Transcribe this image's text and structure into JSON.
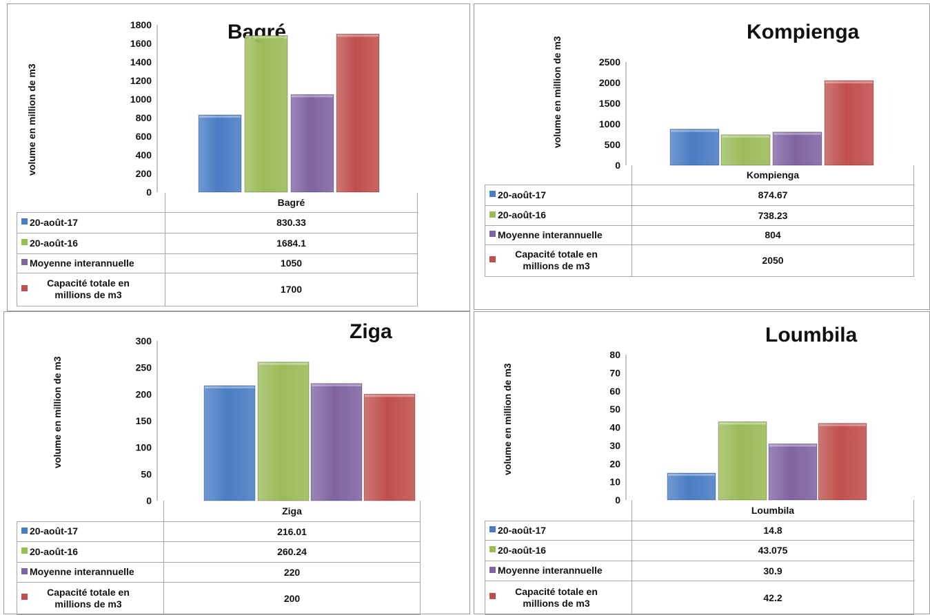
{
  "colors": {
    "s0": "#4a7dc4",
    "s1": "#9bbb59",
    "s2": "#8064a2",
    "s3": "#c0504d"
  },
  "chart_data": [
    {
      "type": "bar",
      "title": "Bagré",
      "ylabel": "volume en million de m3",
      "categories": [
        "Bagré"
      ],
      "ylim": [
        0,
        1800
      ],
      "yticks": [
        0,
        200,
        400,
        600,
        800,
        1000,
        1200,
        1400,
        1600,
        1800
      ],
      "series": [
        {
          "name": "20-août-17",
          "values": [
            830.33
          ],
          "value_label": "830.33"
        },
        {
          "name": "20-août-16",
          "values": [
            1684.1
          ],
          "value_label": "1684.1"
        },
        {
          "name": "Moyenne interannuelle",
          "values": [
            1050
          ],
          "value_label": "1050"
        },
        {
          "name": "Capacité totale en millions de m3",
          "values": [
            1700
          ],
          "value_label": "1700"
        }
      ]
    },
    {
      "type": "bar",
      "title": "Kompienga",
      "ylabel": "volume en million de m3",
      "categories": [
        "Kompienga"
      ],
      "ylim": [
        0,
        2500
      ],
      "yticks": [
        0,
        500,
        1000,
        1500,
        2000,
        2500
      ],
      "series": [
        {
          "name": "20-août-17",
          "values": [
            874.67
          ],
          "value_label": "874.67"
        },
        {
          "name": "20-août-16",
          "values": [
            738.23
          ],
          "value_label": "738.23"
        },
        {
          "name": "Moyenne interannuelle",
          "values": [
            804
          ],
          "value_label": "804"
        },
        {
          "name": "Capacité totale en millions de m3",
          "values": [
            2050
          ],
          "value_label": "2050"
        }
      ]
    },
    {
      "type": "bar",
      "title": "Ziga",
      "ylabel": "volume en million de m3",
      "categories": [
        "Ziga"
      ],
      "ylim": [
        0,
        300
      ],
      "yticks": [
        0,
        50,
        100,
        150,
        200,
        250,
        300
      ],
      "series": [
        {
          "name": "20-août-17",
          "values": [
            216.01
          ],
          "value_label": "216.01"
        },
        {
          "name": "20-août-16",
          "values": [
            260.24
          ],
          "value_label": "260.24"
        },
        {
          "name": "Moyenne interannuelle",
          "values": [
            220
          ],
          "value_label": "220"
        },
        {
          "name": "Capacité totale en millions de m3",
          "values": [
            200
          ],
          "value_label": "200"
        }
      ]
    },
    {
      "type": "bar",
      "title": "Loumbila",
      "ylabel": "volume en million de m3",
      "categories": [
        "Loumbila"
      ],
      "ylim": [
        0,
        80
      ],
      "yticks": [
        0,
        10,
        20,
        30,
        40,
        50,
        60,
        70,
        80
      ],
      "series": [
        {
          "name": "20-août-17",
          "values": [
            14.8
          ],
          "value_label": "14.8"
        },
        {
          "name": "20-août-16",
          "values": [
            43.075
          ],
          "value_label": "43.075"
        },
        {
          "name": "Moyenne interannuelle",
          "values": [
            30.9
          ],
          "value_label": "30.9"
        },
        {
          "name": "Capacité totale en millions de m3",
          "values": [
            42.2
          ],
          "value_label": "42.2"
        }
      ]
    }
  ]
}
